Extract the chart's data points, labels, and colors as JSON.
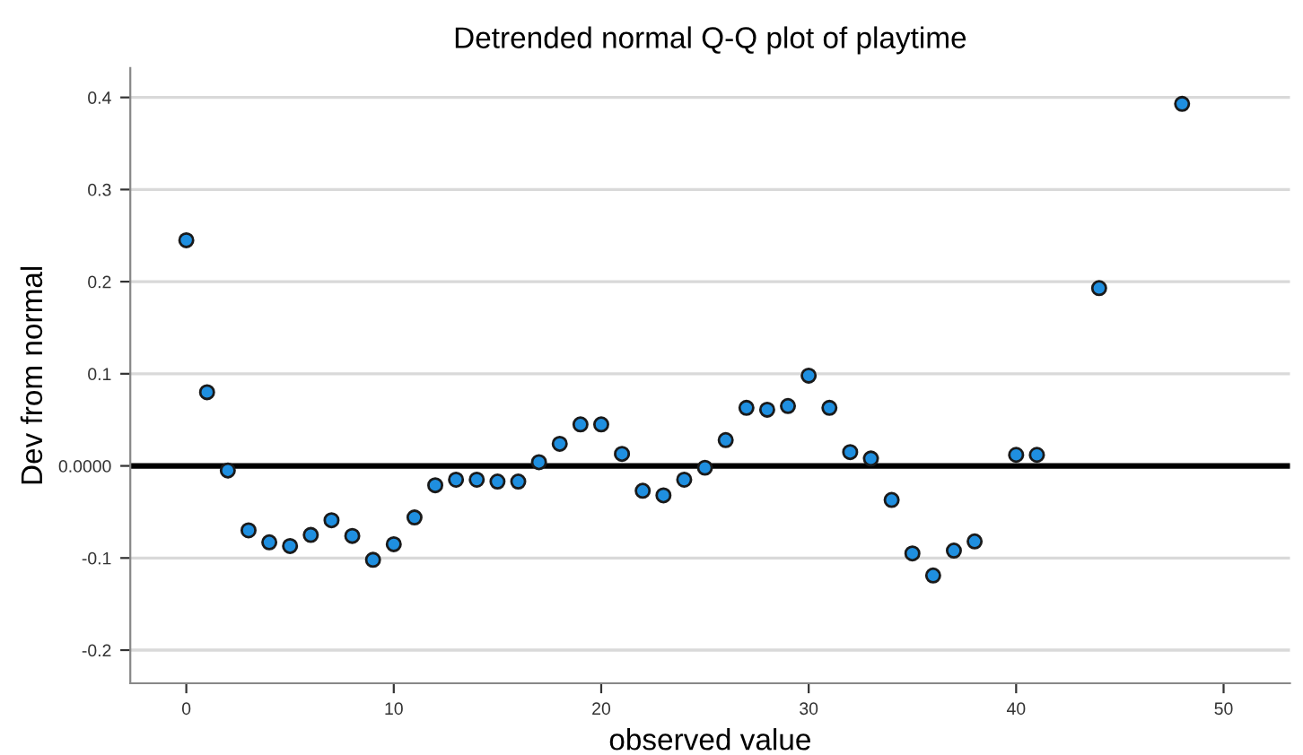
{
  "chart_data": {
    "type": "scatter",
    "title": "Detrended normal Q-Q plot of playtime",
    "xlabel": "observed value",
    "ylabel": "Dev from normal",
    "x": [
      0,
      1,
      2,
      3,
      4,
      5,
      6,
      7,
      8,
      9,
      10,
      11,
      12,
      13,
      14,
      15,
      16,
      17,
      18,
      19,
      20,
      21,
      22,
      23,
      24,
      25,
      26,
      27,
      28,
      29,
      30,
      31,
      32,
      33,
      34,
      35,
      36,
      37,
      38,
      40,
      41,
      44,
      48
    ],
    "series": [
      {
        "color": "#1f8fe0",
        "values": [
          0.245,
          0.08,
          -0.005,
          -0.07,
          -0.083,
          -0.087,
          -0.075,
          -0.059,
          -0.076,
          -0.102,
          -0.085,
          -0.056,
          -0.021,
          -0.015,
          -0.015,
          -0.017,
          -0.017,
          0.004,
          0.024,
          0.045,
          0.045,
          0.013,
          -0.027,
          -0.032,
          -0.015,
          -0.002,
          0.028,
          0.063,
          0.061,
          0.065,
          0.098,
          0.063,
          0.015,
          0.008,
          -0.037,
          -0.095,
          -0.119,
          -0.092,
          -0.082,
          0.012,
          0.012,
          0.193,
          0.393
        ]
      }
    ],
    "xlim": [
      -2.7,
      53.2
    ],
    "ylim": [
      -0.236,
      0.432
    ],
    "xticks": [
      0,
      10,
      20,
      30,
      40,
      50
    ],
    "yticks": [
      -0.2,
      -0.1,
      {
        "value": 0,
        "label": "0.0000"
      },
      0.1,
      0.2,
      0.3,
      0.4
    ],
    "ref_lines": [
      {
        "axis": "y",
        "value": 0,
        "color": "#000000"
      }
    ],
    "grid": "y",
    "marker": "circle"
  }
}
